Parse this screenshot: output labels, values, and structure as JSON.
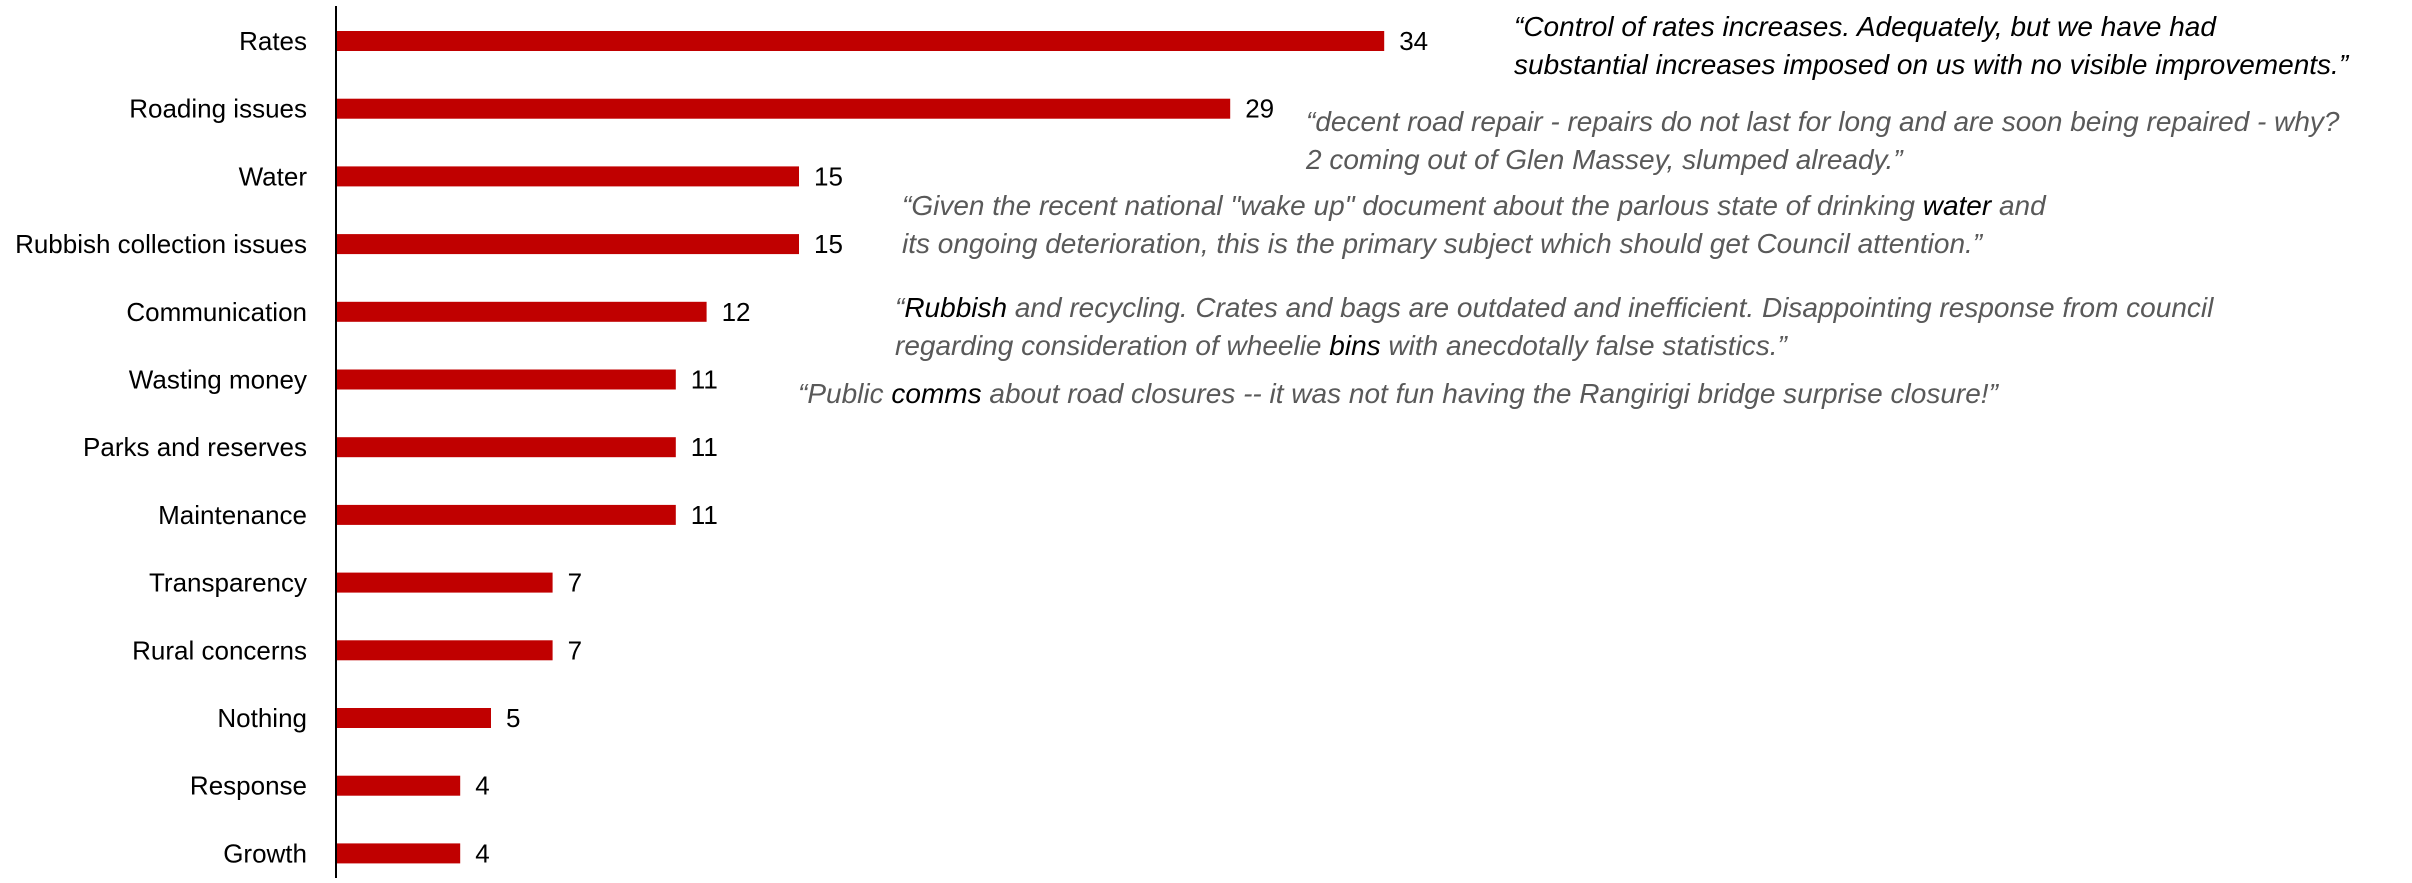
{
  "chart_data": {
    "type": "bar",
    "orientation": "horizontal",
    "categories": [
      "Rates",
      "Roading issues",
      "Water",
      "Rubbish collection issues",
      "Communication",
      "Wasting money",
      "Parks and reserves",
      "Maintenance",
      "Transparency",
      "Rural concerns",
      "Nothing",
      "Response",
      "Growth"
    ],
    "values": [
      34,
      29,
      15,
      15,
      12,
      11,
      11,
      11,
      7,
      7,
      5,
      4,
      4
    ],
    "data_labels": [
      "34",
      "29",
      "15",
      "15",
      "12",
      "11",
      "11",
      "11",
      "7",
      "7",
      "5",
      "4",
      "4"
    ],
    "title": "",
    "xlabel": "",
    "ylabel": "",
    "xlim": [
      0,
      74
    ],
    "grid": false,
    "legend": "none",
    "colors": {
      "bar": "#C00000",
      "axis": "#000000",
      "quote_text": "#595959",
      "quote_highlight": "#000000"
    }
  },
  "annotations": [
    {
      "style": "dark",
      "lines": [
        [
          {
            "text": "“Control of rates increases. Adequately, but we have had"
          }
        ],
        [
          {
            "text": "substantial increases imposed on us with no visible improvements.”"
          }
        ]
      ]
    },
    {
      "style": "grey",
      "lines": [
        [
          {
            "text": "“decent road repair - repairs do not last for long and are soon being repaired - why?"
          }
        ],
        [
          {
            "text": "2 coming out of Glen Massey, slumped already.”"
          }
        ]
      ]
    },
    {
      "style": "grey",
      "lines": [
        [
          {
            "text": "“Given the recent national \"wake up\" document about the parlous state of drinking "
          },
          {
            "text": "water",
            "hl": true
          },
          {
            "text": " and"
          }
        ],
        [
          {
            "text": "its ongoing deterioration, this is the primary subject which should get Council attention.”"
          }
        ]
      ]
    },
    {
      "style": "grey",
      "lines": [
        [
          {
            "text": "“"
          },
          {
            "text": "Rubbish",
            "hl": true
          },
          {
            "text": " and recycling. Crates and bags are outdated and inefficient. Disappointing response from council"
          }
        ],
        [
          {
            "text": "regarding consideration of wheelie "
          },
          {
            "text": "bins",
            "hl": true
          },
          {
            "text": " with anecdotally false statistics.”"
          }
        ]
      ]
    },
    {
      "style": "grey",
      "lines": [
        [
          {
            "text": "“Public "
          },
          {
            "text": "comms",
            "hl": true
          },
          {
            "text": " about road closures -- it was not fun having the Rangirigi bridge surprise closure!”"
          }
        ]
      ]
    }
  ]
}
